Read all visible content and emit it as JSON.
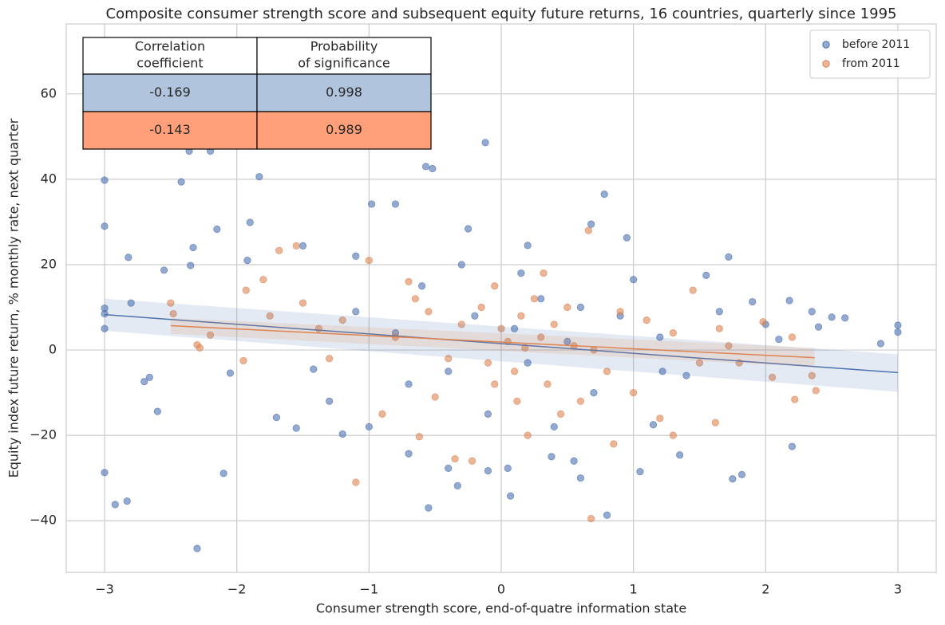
{
  "chart_data": {
    "type": "scatter",
    "title": "Composite consumer strength score and subsequent equity future returns, 16 countries, quarterly since 1995",
    "x_label": "Consumer strength score, end-of-quatre information state",
    "y_label": "Equity index future return, % monthly rate, next quarter",
    "xlim": [
      -3.29,
      3.29
    ],
    "ylim": [
      -52.1,
      76.4
    ],
    "xticks": [
      {
        "value": -3,
        "label": "−3"
      },
      {
        "value": -2,
        "label": "−2"
      },
      {
        "value": -1,
        "label": "−1"
      },
      0,
      1,
      2,
      3
    ],
    "yticks": [
      {
        "value": -40,
        "label": "−40"
      },
      {
        "value": -20,
        "label": "−20"
      },
      0,
      20,
      40,
      60
    ],
    "grid": true,
    "legend": "upper right",
    "series": [
      {
        "name": "before 2011",
        "color": "#4c72b0",
        "x": [
          -3,
          -3,
          -3,
          -3,
          -3,
          -3,
          -2.92,
          -2.83,
          -2.82,
          -2.8,
          -2.7,
          -2.66,
          -2.6,
          -2.55,
          -2.42,
          -2.36,
          -2.33,
          -2.3,
          -2.35,
          -2.2,
          -2.15,
          -2.1,
          -2.05,
          -1.9,
          -1.92,
          -1.83,
          -1.7,
          -1.55,
          -1.5,
          -1.42,
          -1.2,
          -1.1,
          -1.0,
          -0.98,
          -0.8,
          -0.7,
          -0.55,
          -0.57,
          -0.52,
          -0.4,
          -0.33,
          -0.25,
          -0.12,
          -0.1,
          0.05,
          0.07,
          0.2,
          0.38,
          0.55,
          0.6,
          0.68,
          0.78,
          0.8,
          0.95,
          1.0,
          1.05,
          1.15,
          1.22,
          1.35,
          1.55,
          1.65,
          1.72,
          1.75,
          1.82,
          1.9,
          2.0,
          2.1,
          2.18,
          2.2,
          2.35,
          2.5,
          2.6,
          2.4,
          2.87,
          3,
          3,
          0.1,
          0.2,
          -0.2,
          0.3,
          -0.4,
          0.5,
          -0.6,
          0.7,
          -0.8,
          0.9,
          -1.1,
          1.2,
          -1.3,
          1.4,
          -0.1,
          0.15,
          -0.3,
          0.4,
          -0.7,
          0.6
        ],
        "values": [
          39.8,
          29,
          9.8,
          8.5,
          5,
          -28.7,
          -36.2,
          -35.4,
          21.7,
          11,
          -7.4,
          -6.4,
          -14.4,
          18.7,
          39.4,
          46.6,
          24,
          -46.5,
          19.8,
          46.6,
          28.3,
          -28.9,
          -5.4,
          29.9,
          21,
          40.6,
          -15.8,
          -18.3,
          24.4,
          -4.5,
          -19.7,
          22,
          -18,
          34.2,
          34.2,
          -24.3,
          -37,
          43,
          42.5,
          -27.7,
          -31.8,
          28.4,
          48.6,
          -28.3,
          -27.7,
          -34.2,
          24.5,
          -25,
          -26,
          -30,
          29.5,
          36.5,
          -38.7,
          26.3,
          16.5,
          -28.5,
          -17.5,
          -5,
          -24.6,
          17.5,
          9,
          21.8,
          -30.2,
          -29.2,
          11.3,
          6,
          2.5,
          11.6,
          -22.6,
          9,
          7.7,
          7.5,
          5.4,
          1.5,
          5.8,
          4.2,
          5,
          -3,
          8,
          12,
          -5,
          2,
          15,
          -10,
          4,
          8,
          9,
          3,
          -12,
          -6,
          -15,
          18,
          20,
          -18,
          -8,
          10
        ],
        "fit": {
          "x": [
            -3,
            3
          ],
          "values": [
            8.3,
            -5.3
          ],
          "band_lower": [
            4.5,
            -9.8
          ],
          "band_upper": [
            12,
            -1
          ]
        }
      },
      {
        "name": "from 2011",
        "color": "#dd8452",
        "x": [
          -2.5,
          -2.48,
          -2.3,
          -2.28,
          -2.2,
          -1.95,
          -1.93,
          -1.8,
          -1.75,
          -1.68,
          -1.55,
          -1.5,
          -1.38,
          -1.2,
          -1.1,
          -1.0,
          -0.9,
          -0.7,
          -0.62,
          -0.5,
          -0.35,
          -0.22,
          -0.1,
          -0.05,
          0,
          0.05,
          0.1,
          0.15,
          0.2,
          0.25,
          0.3,
          0.35,
          0.4,
          0.45,
          0.5,
          0.55,
          0.6,
          0.66,
          0.68,
          0.8,
          0.9,
          1.0,
          1.1,
          1.2,
          1.3,
          1.45,
          1.5,
          1.62,
          1.65,
          1.72,
          1.8,
          1.98,
          2.05,
          2.2,
          2.22,
          2.35,
          2.38,
          -0.3,
          -0.4,
          -0.8,
          0.7,
          -0.15,
          0.12,
          0.32,
          -0.55,
          1.3,
          -1.3,
          0.85,
          -0.65,
          0.18,
          -0.05
        ],
        "values": [
          11,
          8.5,
          1.2,
          0.5,
          3.5,
          -2.5,
          14,
          16.5,
          8,
          23.3,
          24.4,
          11,
          5,
          7,
          -31,
          21,
          -15,
          16,
          -20.3,
          -11,
          -25.5,
          -26,
          -3,
          15,
          5,
          2,
          -5,
          8,
          -20,
          12,
          3,
          -8,
          6,
          -15,
          10,
          1,
          -12,
          28,
          -39.5,
          -5,
          9,
          -10,
          7,
          -16,
          4,
          14,
          -3,
          -17,
          5,
          1,
          -3,
          6.6,
          -6.4,
          3,
          -11.6,
          -6,
          -9.5,
          6,
          -2,
          3,
          0,
          10,
          -12,
          18,
          9,
          -20,
          -2,
          -22,
          12,
          0.5,
          -8
        ],
        "fit": {
          "x": [
            -2.5,
            2.37
          ],
          "values": [
            5.7,
            -1.8
          ],
          "band_lower": [
            3.8,
            -4
          ],
          "band_upper": [
            7.5,
            0.5
          ]
        }
      }
    ],
    "table": {
      "header": [
        [
          "Correlation",
          "coefficient"
        ],
        [
          "Probability",
          "of significance"
        ]
      ],
      "rows": [
        [
          -0.169,
          0.998
        ],
        [
          -0.143,
          0.989
        ]
      ],
      "row_colors": [
        "#b0c4de",
        "#ffa07a"
      ]
    }
  }
}
